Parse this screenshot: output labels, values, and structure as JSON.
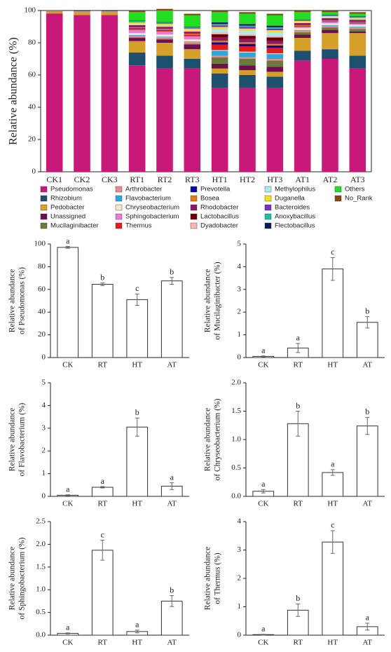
{
  "chart_data": [
    {
      "type": "stacked_bar",
      "ylabel": "Relative abundance (%)",
      "categories": [
        "CK1",
        "CK2",
        "CK3",
        "RT1",
        "RT2",
        "RT3",
        "HT1",
        "HT2",
        "HT3",
        "AT1",
        "AT2",
        "AT3"
      ],
      "ylim": [
        0,
        100
      ],
      "yticks": [
        0,
        20,
        40,
        60,
        80,
        100
      ],
      "series": [
        {
          "name": "Pseudomonas",
          "color": "#c8187a",
          "values": [
            98,
            97,
            97,
            66,
            64,
            64,
            52,
            52,
            52,
            69,
            70,
            64
          ]
        },
        {
          "name": "Rhizobium",
          "color": "#1d4f6e",
          "values": [
            0.2,
            0.2,
            0.2,
            8,
            8,
            6,
            9,
            8,
            7,
            6,
            6,
            8
          ]
        },
        {
          "name": "Pedobacter",
          "color": "#d4a02a",
          "values": [
            1.2,
            2,
            2,
            7,
            8,
            6,
            3,
            3,
            3,
            8,
            10,
            14
          ]
        },
        {
          "name": "Unassigned",
          "color": "#6b0f4f",
          "values": [
            0.1,
            0.1,
            0.1,
            2,
            2,
            3,
            3,
            3,
            3,
            2,
            2,
            1
          ]
        },
        {
          "name": "Mucilaginibacter",
          "color": "#6b7a3a",
          "values": [
            0.05,
            0.05,
            0.05,
            0.4,
            0.4,
            0.4,
            4,
            4,
            4,
            1.5,
            1.5,
            1.5
          ]
        },
        {
          "name": "Arthrobacter",
          "color": "#e88a8a",
          "values": [
            0,
            0,
            0,
            1,
            1,
            1,
            1,
            1,
            1,
            1,
            1,
            1
          ]
        },
        {
          "name": "Flavobacterium",
          "color": "#29a8e0",
          "values": [
            0.05,
            0.05,
            0.05,
            0.4,
            0.4,
            0.4,
            3,
            3,
            3,
            0.45,
            0.45,
            0.45
          ]
        },
        {
          "name": "Chryseobacterium",
          "color": "#f5e6c8",
          "values": [
            0.1,
            0.1,
            0.1,
            1.3,
            1.3,
            1.3,
            0.4,
            0.4,
            0.4,
            1.2,
            1.2,
            1.2
          ]
        },
        {
          "name": "Sphingobacterium",
          "color": "#e87ad8",
          "values": [
            0.05,
            0.05,
            0.05,
            1.9,
            1.9,
            1.9,
            0.1,
            0.1,
            0.1,
            0.75,
            0.75,
            0.75
          ]
        },
        {
          "name": "Thermus",
          "color": "#e41a1c",
          "values": [
            0.03,
            0.03,
            0.03,
            0.9,
            0.9,
            0.9,
            3.3,
            3.3,
            3.3,
            0.3,
            0.3,
            0.3
          ]
        },
        {
          "name": "Prevotella",
          "color": "#0a0a9a",
          "values": [
            0,
            0,
            0,
            0.2,
            0.2,
            0.2,
            1.5,
            1.5,
            1.5,
            0.2,
            0.2,
            0.2
          ]
        },
        {
          "name": "Bosea",
          "color": "#e07b1a",
          "values": [
            0,
            0,
            0,
            0.5,
            0.5,
            0.5,
            1,
            1,
            1,
            0.5,
            0.5,
            0.5
          ]
        },
        {
          "name": "Rhodobacter",
          "color": "#8b1a6b",
          "values": [
            0,
            0,
            0,
            1,
            1,
            1,
            2,
            2,
            2,
            1,
            1,
            1
          ]
        },
        {
          "name": "Lactobacillus",
          "color": "#6b0000",
          "values": [
            0,
            0,
            0,
            0.3,
            0.3,
            0.3,
            2,
            2,
            2,
            0.3,
            0.3,
            0.3
          ]
        },
        {
          "name": "Dyadobacter",
          "color": "#f4b6b6",
          "values": [
            0,
            0,
            0,
            0.5,
            0.5,
            0.5,
            1,
            1,
            1,
            0.5,
            0.5,
            0.5
          ]
        },
        {
          "name": "Methylophilus",
          "color": "#aee8f0",
          "values": [
            0,
            0,
            0,
            0.3,
            0.3,
            0.3,
            2,
            2,
            2,
            0.3,
            0.3,
            0.3
          ]
        },
        {
          "name": "Duganella",
          "color": "#f0e020",
          "values": [
            0,
            0,
            0,
            1,
            1,
            1,
            1.5,
            1.5,
            1.5,
            0.5,
            0.5,
            0.5
          ]
        },
        {
          "name": "Bacteroides",
          "color": "#7b2fbe",
          "values": [
            0,
            0,
            0,
            0.3,
            0.3,
            0.3,
            1,
            1,
            1,
            0.3,
            0.3,
            0.3
          ]
        },
        {
          "name": "Anoxybacillus",
          "color": "#20c0a0",
          "values": [
            0,
            0,
            0,
            0.5,
            0.5,
            0.5,
            0.8,
            0.8,
            0.8,
            0.2,
            0.2,
            0.2
          ]
        },
        {
          "name": "Flectobacillus",
          "color": "#0a1a5a",
          "values": [
            0,
            0,
            0,
            0.3,
            0.3,
            0.3,
            1,
            1,
            1,
            0.3,
            0.3,
            0.3
          ]
        },
        {
          "name": "Others",
          "color": "#22dd22",
          "values": [
            0,
            0,
            0,
            5.2,
            7.2,
            7.2,
            6.4,
            6.4,
            6.4,
            4.7,
            1.7,
            1.7
          ]
        },
        {
          "name": "No_Rank",
          "color": "#8b4513",
          "values": [
            0.2,
            0.2,
            0.2,
            1,
            1,
            1,
            1,
            1,
            1,
            1,
            1,
            1
          ]
        }
      ]
    },
    {
      "type": "bar",
      "ylabel": [
        "Relative abundance",
        "of Pseudomonas (%)"
      ],
      "categories": [
        "CK",
        "RT",
        "HT",
        "AT"
      ],
      "values": [
        97,
        64.5,
        51,
        67.5
      ],
      "errors": [
        0.8,
        1.2,
        5,
        3
      ],
      "significance": [
        "a",
        "b",
        "c",
        "b"
      ],
      "ylim": [
        0,
        100
      ],
      "yticks": [
        0,
        20,
        40,
        60,
        80,
        100
      ]
    },
    {
      "type": "bar",
      "ylabel": [
        "Relative abundance",
        "of Mucilaginibacter (%)"
      ],
      "categories": [
        "CK",
        "RT",
        "HT",
        "AT"
      ],
      "values": [
        0.05,
        0.42,
        3.9,
        1.55
      ],
      "errors": [
        0.02,
        0.2,
        0.5,
        0.25
      ],
      "significance": [
        "a",
        "a",
        "c",
        "b"
      ],
      "ylim": [
        0,
        5
      ],
      "yticks": [
        0,
        1,
        2,
        3,
        4,
        5
      ]
    },
    {
      "type": "bar",
      "ylabel": [
        "Relative abundance",
        "of Flavobacterium (%)"
      ],
      "categories": [
        "CK",
        "RT",
        "HT",
        "AT"
      ],
      "values": [
        0.05,
        0.4,
        3.05,
        0.45
      ],
      "errors": [
        0.02,
        0.03,
        0.4,
        0.15
      ],
      "significance": [
        "a",
        "a",
        "b",
        "a"
      ],
      "ylim": [
        0,
        5
      ],
      "yticks": [
        0,
        1,
        2,
        3,
        4,
        5
      ]
    },
    {
      "type": "bar",
      "ylabel": [
        "Relative abundance",
        "of Chryseobacterium (%)"
      ],
      "categories": [
        "CK",
        "RT",
        "HT",
        "AT"
      ],
      "values": [
        0.09,
        1.28,
        0.42,
        1.24
      ],
      "errors": [
        0.03,
        0.22,
        0.05,
        0.15
      ],
      "significance": [
        "a",
        "b",
        "a",
        "b"
      ],
      "ylim": [
        0,
        2
      ],
      "yticks": [
        {
          "value": 0,
          "label": "0.0"
        },
        {
          "value": 0.5,
          "label": "0.5"
        },
        {
          "value": 1,
          "label": "1.0"
        },
        {
          "value": 1.5,
          "label": "1.5"
        },
        {
          "value": 2,
          "label": "2.0"
        }
      ]
    },
    {
      "type": "bar",
      "ylabel": [
        "Relative abundance",
        "of Sphingobacterium (%)"
      ],
      "categories": [
        "CK",
        "RT",
        "HT",
        "AT"
      ],
      "values": [
        0.04,
        1.87,
        0.08,
        0.75
      ],
      "errors": [
        0.01,
        0.22,
        0.03,
        0.12
      ],
      "significance": [
        "a",
        "c",
        "a",
        "b"
      ],
      "ylim": [
        0,
        2.5
      ],
      "yticks": [
        {
          "value": 0,
          "label": "0.0"
        },
        {
          "value": 0.5,
          "label": "0.5"
        },
        {
          "value": 1,
          "label": "1.0"
        },
        {
          "value": 1.5,
          "label": "1.5"
        },
        {
          "value": 2,
          "label": "2.0"
        },
        {
          "value": 2.5,
          "label": "2.5"
        }
      ]
    },
    {
      "type": "bar",
      "ylabel": [
        "Relative abundance",
        "of Thermus (%)"
      ],
      "categories": [
        "CK",
        "RT",
        "HT",
        "AT"
      ],
      "values": [
        0.02,
        0.88,
        3.28,
        0.3
      ],
      "errors": [
        0.01,
        0.22,
        0.4,
        0.12
      ],
      "significance": [
        "a",
        "b",
        "c",
        "a"
      ],
      "ylim": [
        0,
        4
      ],
      "yticks": [
        0,
        1,
        2,
        3,
        4
      ]
    }
  ]
}
